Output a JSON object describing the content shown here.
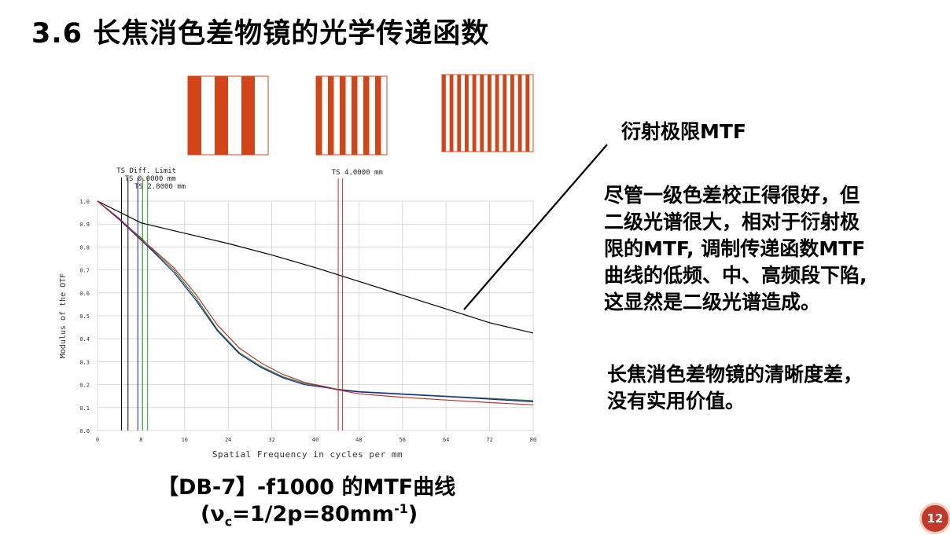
{
  "slide": {
    "title": "3.6  长焦消色差物镜的光学传递函数",
    "page_number": "12"
  },
  "grating_icons": {
    "bar_color": "#d34418",
    "gap_color": "#ffffff",
    "panels": [
      {
        "name": "low-frequency",
        "bar_count": 3
      },
      {
        "name": "medium-frequency",
        "bar_count": 6
      },
      {
        "name": "high-frequency",
        "bar_count": 12
      }
    ]
  },
  "annotations": {
    "mtf_label": "衍射极限MTF",
    "para1_lines": [
      "尽管一级色差校正得很好，但",
      "二级光谱很大，相对于衍射极",
      "限的MTF, 调制传递函数MTF",
      "曲线的低频、中、高频段下陷,",
      "这显然是二级光谱造成。"
    ],
    "para2_lines": [
      "长焦消色差物镜的清晰度差，",
      "没有实用价值。"
    ]
  },
  "caption": {
    "line1": "【DB-7】-f1000  的MTF曲线",
    "line2_prefix": "(ν",
    "line2_sub": "c",
    "line2_mid": "=1/2p=80mm",
    "line2_sup": "-1",
    "line2_suffix": ")"
  },
  "chart_data": {
    "type": "line",
    "xlabel": "Spatial Frequency in cycles per mm",
    "ylabel": "Modulus of the OTF",
    "xlim": [
      0,
      80
    ],
    "ylim": [
      0,
      1
    ],
    "xticks": [
      "0",
      "8",
      "16",
      "24",
      "32",
      "40",
      "48",
      "56",
      "64",
      "72",
      "80"
    ],
    "yticks": [
      "0.0",
      "0.1",
      "0.2",
      "0.3",
      "0.4",
      "0.5",
      "0.6",
      "0.7",
      "0.8",
      "0.9",
      "1.0"
    ],
    "grid": true,
    "legend_labels": [
      "TS Diff. Limit",
      "TS 0.0000 mm",
      "TS 2.8000 mm",
      "TS 4.0000 mm"
    ],
    "series": [
      {
        "name": "TS Diff. Limit",
        "color": "#000000",
        "x": [
          0,
          8,
          16,
          24,
          32,
          40,
          48,
          56,
          64,
          72,
          80
        ],
        "y": [
          1.0,
          0.905,
          0.86,
          0.815,
          0.765,
          0.71,
          0.65,
          0.59,
          0.53,
          0.47,
          0.425
        ]
      },
      {
        "name": "TS 0.0000 mm",
        "color": "#1f8a1f",
        "x": [
          0,
          4,
          8,
          10,
          14,
          18,
          22,
          26,
          30,
          34,
          38,
          42,
          44,
          48,
          56,
          64,
          72,
          80
        ],
        "y": [
          1.0,
          0.92,
          0.84,
          0.79,
          0.7,
          0.58,
          0.44,
          0.34,
          0.28,
          0.235,
          0.205,
          0.19,
          0.18,
          0.17,
          0.16,
          0.15,
          0.14,
          0.13
        ]
      },
      {
        "name": "TS 2.8000 mm",
        "color": "#1a1aa8",
        "x": [
          0,
          4,
          8,
          10,
          14,
          18,
          22,
          26,
          30,
          34,
          38,
          42,
          44,
          48,
          56,
          64,
          72,
          80
        ],
        "y": [
          1.0,
          0.92,
          0.83,
          0.785,
          0.69,
          0.57,
          0.435,
          0.335,
          0.275,
          0.23,
          0.2,
          0.187,
          0.178,
          0.168,
          0.158,
          0.148,
          0.137,
          0.125
        ]
      },
      {
        "name": "TS 4.0000 mm",
        "color": "#c0302a",
        "x": [
          0,
          4,
          8,
          10,
          14,
          18,
          22,
          26,
          30,
          34,
          38,
          42,
          44,
          48,
          56,
          64,
          72,
          80
        ],
        "y": [
          1.0,
          0.925,
          0.835,
          0.795,
          0.71,
          0.595,
          0.46,
          0.36,
          0.295,
          0.245,
          0.21,
          0.19,
          0.178,
          0.16,
          0.145,
          0.133,
          0.122,
          0.112
        ]
      }
    ],
    "vertical_markers": [
      {
        "x": 4.4,
        "color": "#000000"
      },
      {
        "x": 5.6,
        "color": "#000000"
      },
      {
        "x": 7.4,
        "color": "#1a1aa8"
      },
      {
        "x": 8.3,
        "color": "#22aa22"
      },
      {
        "x": 9.2,
        "color": "#22aa22"
      },
      {
        "x": 44.2,
        "color": "#c0302a"
      },
      {
        "x": 45.0,
        "color": "#c0302a"
      }
    ]
  }
}
